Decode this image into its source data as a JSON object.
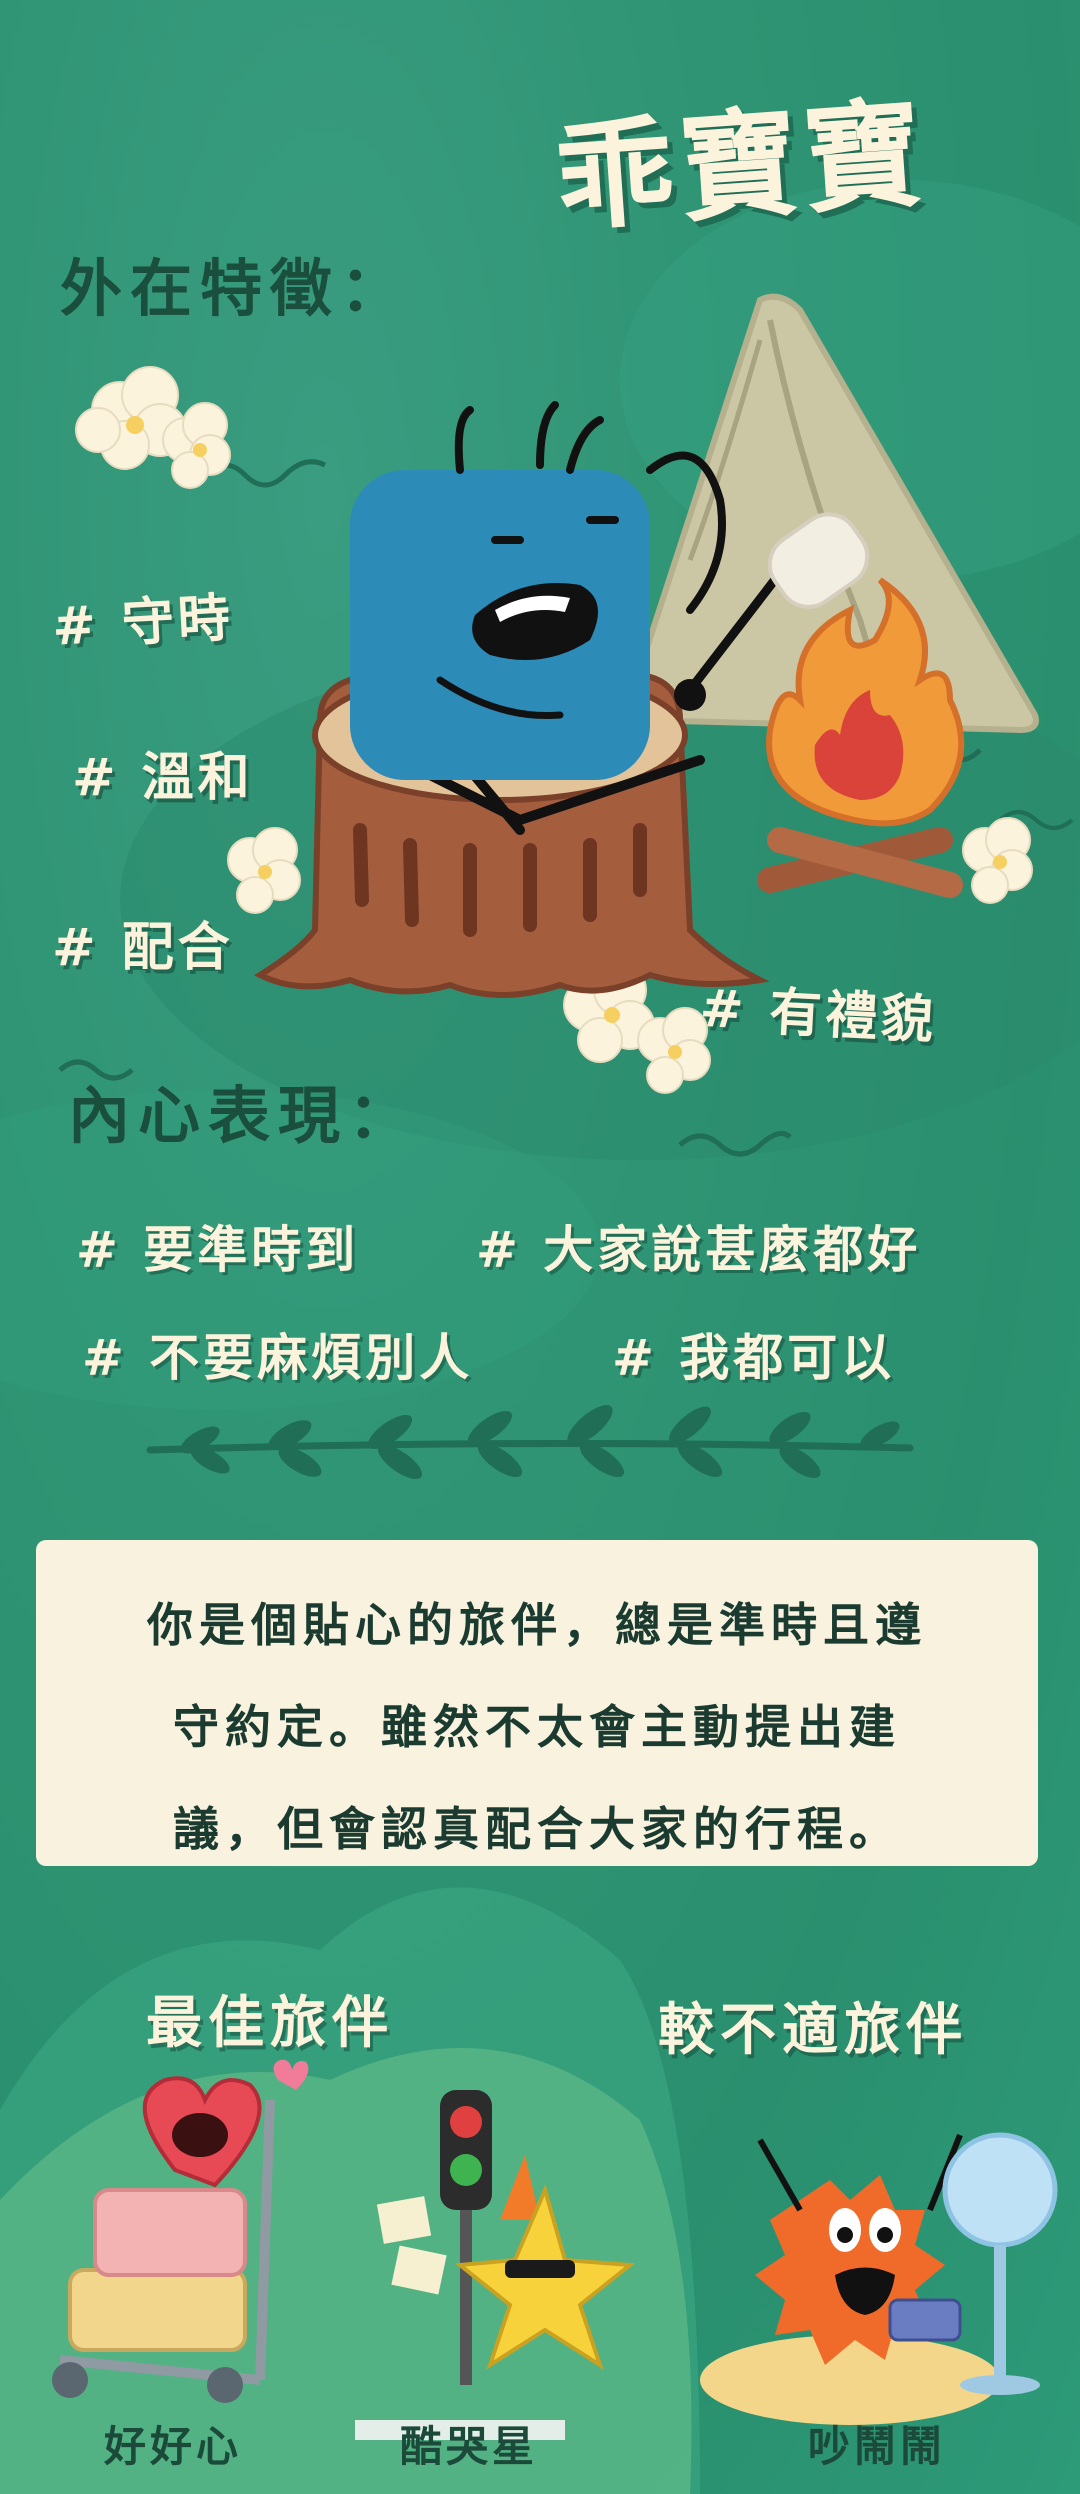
{
  "title": "乖寶寶",
  "appearance": {
    "heading": "外在特徵：",
    "tags": [
      "# 守時",
      "# 溫和",
      "# 配合",
      "# 有禮貌"
    ]
  },
  "inner": {
    "heading": "內心表現：",
    "tags": [
      "# 要準時到",
      "# 大家說甚麼都好",
      "# 不要麻煩別人",
      "# 我都可以"
    ]
  },
  "description": {
    "lines": [
      "你是個貼心的旅伴，總是準時且遵",
      "守約定。雖然不太會主動提出建",
      "議，但會認真配合大家的行程。"
    ]
  },
  "best": {
    "heading": "最佳旅伴",
    "characters": [
      "好好心",
      "酷哭星"
    ]
  },
  "worst": {
    "heading": "較不適旅伴",
    "characters": [
      "吵鬧鬧"
    ]
  },
  "colors": {
    "background": "#2e9473",
    "cream": "#f8f2df",
    "dark_green": "#1b4f3d",
    "character_blue": "#2e8fbf"
  }
}
